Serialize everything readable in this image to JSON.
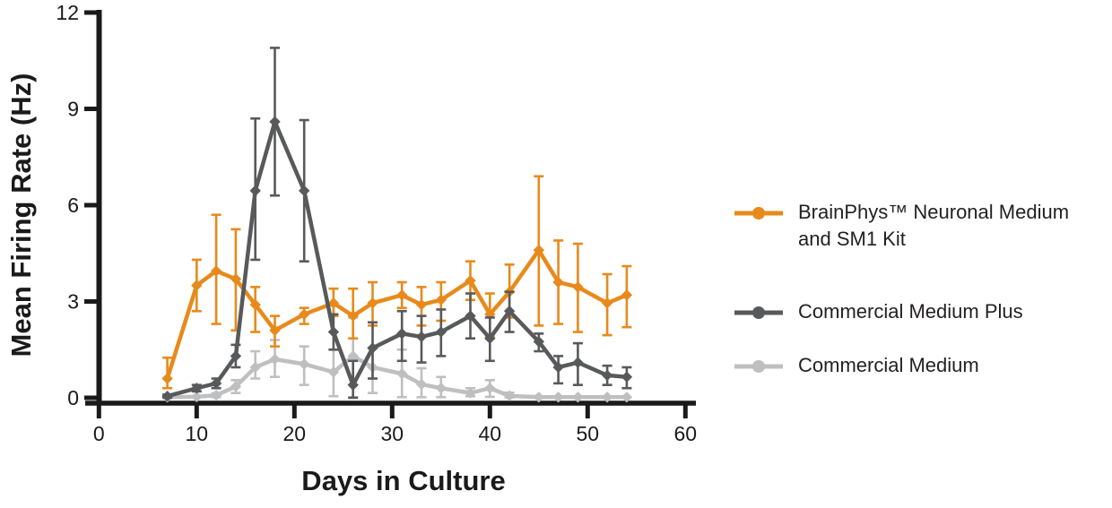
{
  "figure": {
    "y_axis_title": "Mean Firing Rate (Hz)",
    "x_axis_title": "Days in Culture"
  },
  "legend": {
    "items": [
      {
        "lines": [
          "BrainPhys™ Neuronal Medium",
          "and SM1 Kit"
        ],
        "color": "#E88A1B"
      },
      {
        "lines": [
          "Commercial Medium Plus"
        ],
        "color": "#58595B"
      },
      {
        "lines": [
          "Commercial Medium"
        ],
        "color": "#BFBFC1"
      }
    ]
  },
  "chart_data": {
    "type": "line",
    "title": "",
    "xlabel": "Days in Culture",
    "ylabel": "Mean Firing Rate (Hz)",
    "xlim": [
      0,
      60
    ],
    "ylim": [
      0,
      12
    ],
    "xticks": [
      0,
      10,
      20,
      30,
      40,
      50,
      60
    ],
    "yticks": [
      0,
      3,
      6,
      9,
      12
    ],
    "grid": false,
    "legend_position": "right",
    "error_bars": true,
    "x": [
      7,
      10,
      12,
      14,
      16,
      18,
      21,
      24,
      26,
      28,
      31,
      33,
      35,
      38,
      40,
      42,
      45,
      47,
      49,
      52,
      54
    ],
    "series": [
      {
        "name": "BrainPhys™ Neuronal Medium and SM1 Kit",
        "color": "#E88A1B",
        "values": [
          0.6,
          3.5,
          3.95,
          3.7,
          2.9,
          2.1,
          2.6,
          2.95,
          2.55,
          2.95,
          3.2,
          2.9,
          3.05,
          3.65,
          2.6,
          3.3,
          4.6,
          3.6,
          3.45,
          2.95,
          3.2
        ],
        "err_minus": [
          0.3,
          0.8,
          1.65,
          1.6,
          0.85,
          0.5,
          0.3,
          0.4,
          0.7,
          0.7,
          0.4,
          0.65,
          0.65,
          0.6,
          0.7,
          0.8,
          2.35,
          1.3,
          1.4,
          1.0,
          1.0
        ],
        "err_plus": [
          0.65,
          0.8,
          1.75,
          1.55,
          0.55,
          0.45,
          0.2,
          0.45,
          0.85,
          0.65,
          0.4,
          0.55,
          0.55,
          0.6,
          0.65,
          0.85,
          2.3,
          1.3,
          1.35,
          0.9,
          0.9
        ]
      },
      {
        "name": "Commercial Medium Plus",
        "color": "#58595B",
        "values": [
          0.05,
          0.3,
          0.45,
          1.3,
          6.45,
          8.6,
          6.45,
          2.05,
          0.4,
          1.55,
          2.0,
          1.9,
          2.05,
          2.55,
          1.85,
          2.7,
          1.75,
          0.95,
          1.1,
          0.7,
          0.65
        ],
        "err_minus": [
          0.05,
          0.1,
          0.15,
          0.35,
          2.15,
          2.3,
          2.2,
          0.55,
          0.4,
          0.95,
          0.85,
          0.8,
          0.75,
          0.7,
          0.7,
          0.65,
          0.3,
          0.5,
          0.7,
          0.3,
          0.35
        ],
        "err_plus": [
          0.05,
          0.1,
          0.15,
          0.35,
          2.25,
          2.3,
          2.2,
          0.55,
          0.75,
          0.8,
          0.7,
          0.65,
          0.7,
          0.7,
          0.65,
          0.6,
          0.25,
          0.35,
          0.6,
          0.3,
          0.3
        ]
      },
      {
        "name": "Commercial Medium",
        "color": "#BFBFC1",
        "values": [
          0.02,
          0.03,
          0.08,
          0.35,
          0.95,
          1.2,
          1.05,
          0.8,
          1.3,
          0.95,
          0.75,
          0.42,
          0.3,
          0.15,
          0.3,
          0.06,
          0.02,
          0.02,
          0.02,
          0.02,
          0.02
        ],
        "err_minus": [
          0.02,
          0.03,
          0.06,
          0.2,
          0.35,
          0.55,
          0.65,
          0.75,
          1.28,
          0.8,
          0.73,
          0.4,
          0.28,
          0.1,
          0.27,
          0.05,
          0.02,
          0.02,
          0.02,
          0.02,
          0.02
        ],
        "err_plus": [
          0.02,
          0.03,
          0.06,
          0.2,
          0.5,
          0.6,
          0.55,
          0.7,
          1.2,
          0.6,
          0.75,
          0.5,
          0.35,
          0.15,
          0.25,
          0.1,
          0.02,
          0.02,
          0.02,
          0.02,
          0.02
        ]
      }
    ]
  }
}
